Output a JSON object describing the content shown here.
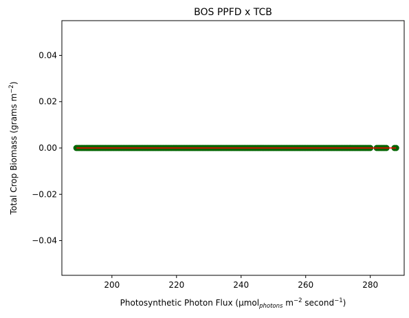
{
  "chart_data": {
    "type": "scatter",
    "title": "BOS PPFD x TCB",
    "xlabel_parts": {
      "prefix": "Photosynthetic Photon Flux (µmol",
      "sub": "photons",
      "mid": " m",
      "sup1": "−2",
      "mid2": " second",
      "sup2": "−1",
      "suffix": ")"
    },
    "ylabel_parts": {
      "prefix": "Total Crop Biomass (grams m",
      "sup": "−2",
      "suffix": ")"
    },
    "xlim": [
      184.5,
      290.5
    ],
    "ylim": [
      -0.055,
      0.055
    ],
    "xticks": [
      200,
      220,
      240,
      260,
      280
    ],
    "xtick_labels": [
      "200",
      "220",
      "240",
      "260",
      "280"
    ],
    "yticks": [
      0.04,
      0.02,
      0.0,
      -0.02,
      -0.04
    ],
    "ytick_labels": [
      "0.04",
      "0.02",
      "0.00",
      "−0.02",
      "−0.04"
    ],
    "grid": false,
    "colors": {
      "points": "#006400",
      "line": "#ff0000",
      "axes": "#000000"
    },
    "series": [
      {
        "marker": "circle",
        "x_ranges": [
          [
            189,
            280
          ],
          [
            282,
            285
          ],
          [
            287.5,
            288
          ]
        ],
        "y": 0.0
      }
    ],
    "fit_line": {
      "x": [
        189,
        288
      ],
      "y": [
        0.0,
        0.0
      ]
    }
  }
}
